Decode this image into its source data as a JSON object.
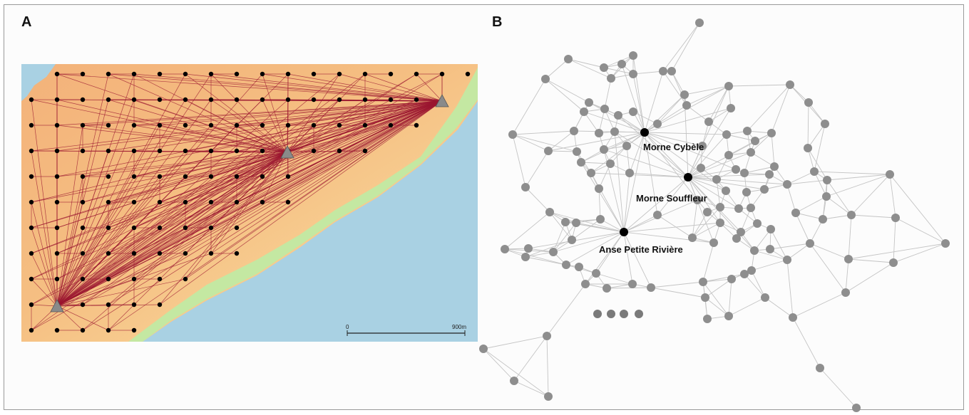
{
  "panels": {
    "a_label": "A",
    "b_label": "B"
  },
  "map": {
    "scale_start": "0",
    "scale_end": "900m",
    "colors": {
      "land_high": "#f2ad72",
      "land_low": "#f9d79a",
      "coast": "#bfe7a0",
      "sea": "#a9d1e3",
      "edge": "#9b1530",
      "node": "#000000",
      "site": "#8a8a8a"
    }
  },
  "network": {
    "labels": {
      "morne_cybele": "Morne Cybèle",
      "morne_souffleur": "Morne Souffleur",
      "anse_petite_riviere": "Anse Petite Rivière"
    },
    "colors": {
      "node": "#8e8e8e",
      "highlight": "#000000",
      "edge": "#c4c4c4"
    }
  }
}
